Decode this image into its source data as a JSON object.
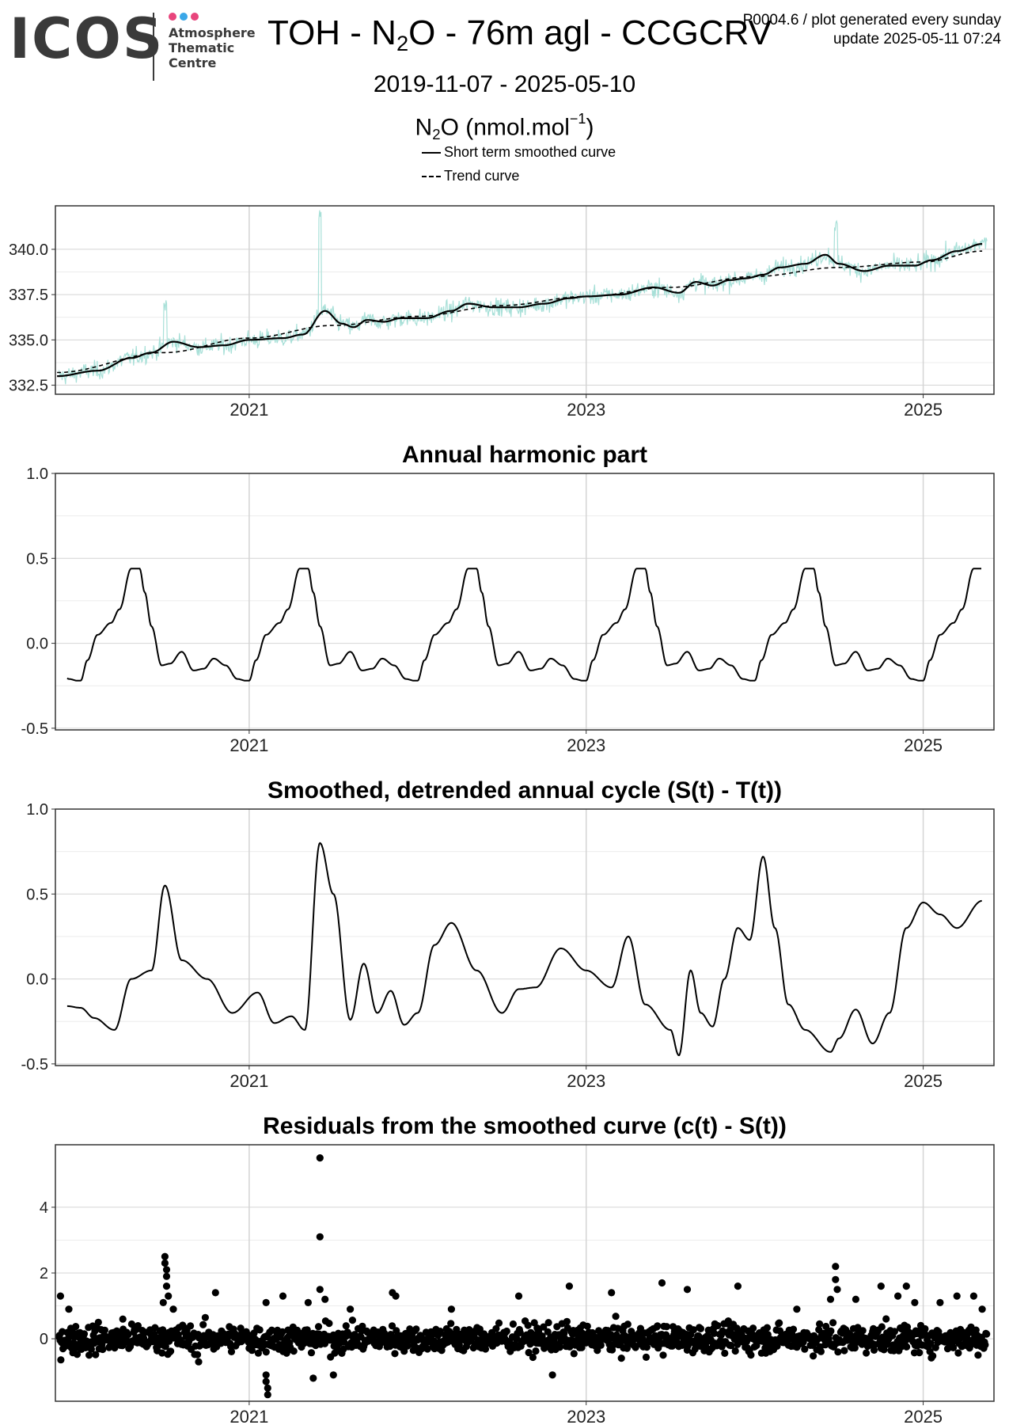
{
  "header": {
    "logo_text": "ICOS",
    "logo_subtitle": [
      "Atmosphere",
      "Thematic",
      "Centre"
    ],
    "logo_dot_colors": [
      "#e8457c",
      "#3aa7e8",
      "#e8457c"
    ],
    "title_parts": [
      "TOH - N",
      "2",
      "O - 76m agl - CCGCRV"
    ],
    "meta_line1": "P0004.6 / plot generated every sunday",
    "meta_line2": "update  2025-05-11 07:24",
    "date_range": "2019-11-07 - 2025-05-10",
    "unit_parts": [
      "N",
      "2",
      "O (nmol.mol",
      "−1",
      ")"
    ]
  },
  "legend": {
    "items": [
      {
        "label": "Short term smoothed curve",
        "style": "solid"
      },
      {
        "label": "Trend curve",
        "style": "dashed"
      }
    ]
  },
  "colors": {
    "raw_series": "#a8e0d8",
    "lines": "#000000",
    "grid_major": "#d4d4d4",
    "grid_minor": "#ececec",
    "panel_border": "#333333"
  },
  "chart_data": [
    {
      "type": "line",
      "title": "",
      "xlim": [
        2019.85,
        2025.42
      ],
      "ylim": [
        332.0,
        342.4
      ],
      "yticks": [
        332.5,
        335.0,
        337.5,
        340.0
      ],
      "ytick_labels": [
        "332.5",
        "335.0",
        "337.5",
        "340.0"
      ],
      "xticks": [
        2021,
        2023,
        2025
      ],
      "xtick_labels": [
        "2021",
        "2023",
        "2025"
      ],
      "series": [
        {
          "name": "Short term smoothed curve",
          "style": "solid",
          "x": [
            2019.86,
            2020.1,
            2020.3,
            2020.42,
            2020.55,
            2020.7,
            2020.85,
            2021.0,
            2021.2,
            2021.32,
            2021.45,
            2021.55,
            2021.62,
            2021.7,
            2021.8,
            2021.9,
            2022.05,
            2022.2,
            2022.3,
            2022.45,
            2022.6,
            2022.75,
            2022.9,
            2023.0,
            2023.2,
            2023.4,
            2023.55,
            2023.65,
            2023.75,
            2023.85,
            2023.95,
            2024.05,
            2024.15,
            2024.3,
            2024.42,
            2024.5,
            2024.65,
            2024.8,
            2024.95,
            2025.05,
            2025.2,
            2025.35
          ],
          "y": [
            333.0,
            333.3,
            334.0,
            334.3,
            334.9,
            334.6,
            334.7,
            335.0,
            335.1,
            335.3,
            336.6,
            335.9,
            335.7,
            336.1,
            336.0,
            336.2,
            336.2,
            336.6,
            337.0,
            336.8,
            336.8,
            337.0,
            337.3,
            337.4,
            337.5,
            337.9,
            337.6,
            338.2,
            338.0,
            338.3,
            338.4,
            338.6,
            339.0,
            339.2,
            339.7,
            339.2,
            338.8,
            339.1,
            339.1,
            339.4,
            339.9,
            340.3
          ]
        },
        {
          "name": "Trend curve",
          "style": "dashed",
          "x": [
            2019.86,
            2020.5,
            2021.0,
            2021.5,
            2022.0,
            2022.5,
            2023.0,
            2023.5,
            2024.0,
            2024.5,
            2025.0,
            2025.35
          ],
          "y": [
            333.2,
            334.3,
            335.1,
            335.8,
            336.3,
            336.9,
            337.4,
            337.9,
            338.5,
            339.0,
            339.3,
            339.9
          ]
        }
      ]
    },
    {
      "type": "line",
      "title": "Annual harmonic part",
      "xlim": [
        2019.85,
        2025.42
      ],
      "ylim": [
        -0.51,
        1.0
      ],
      "yticks": [
        -0.5,
        0.0,
        0.5,
        1.0
      ],
      "ytick_labels": [
        "-0.5",
        "0.0",
        "0.5",
        "1.0"
      ],
      "xticks": [
        2021,
        2023,
        2025
      ],
      "xtick_labels": [
        "2021",
        "2023",
        "2025"
      ],
      "series": [
        {
          "style": "solid",
          "cycle_phase": [
            0,
            0.04,
            0.1,
            0.18,
            0.23,
            0.3,
            0.35,
            0.38,
            0.42,
            0.48,
            0.53,
            0.6,
            0.67,
            0.73,
            0.79,
            0.86,
            0.93,
            0.98,
            1.0
          ],
          "cycle_value": [
            -0.22,
            -0.1,
            0.05,
            0.12,
            0.2,
            0.44,
            0.44,
            0.3,
            0.1,
            -0.13,
            -0.12,
            -0.05,
            -0.16,
            -0.15,
            -0.09,
            -0.13,
            -0.21,
            -0.22,
            -0.22
          ],
          "phase_origin_year": 2020.0,
          "x_start": 2019.92,
          "x_end": 2025.35
        }
      ]
    },
    {
      "type": "line",
      "title": "Smoothed, detrended annual cycle (S(t) - T(t))",
      "xlim": [
        2019.85,
        2025.42
      ],
      "ylim": [
        -0.51,
        1.0
      ],
      "yticks": [
        -0.5,
        0.0,
        0.5,
        1.0
      ],
      "ytick_labels": [
        "-0.5",
        "0.0",
        "0.5",
        "1.0"
      ],
      "xticks": [
        2021,
        2023,
        2025
      ],
      "xtick_labels": [
        "2021",
        "2023",
        "2025"
      ],
      "series": [
        {
          "style": "solid",
          "x": [
            2019.92,
            2020.0,
            2020.08,
            2020.2,
            2020.3,
            2020.42,
            2020.5,
            2020.6,
            2020.75,
            2020.9,
            2021.05,
            2021.15,
            2021.25,
            2021.33,
            2021.42,
            2021.5,
            2021.6,
            2021.68,
            2021.76,
            2021.84,
            2021.92,
            2022.0,
            2022.1,
            2022.2,
            2022.35,
            2022.5,
            2022.6,
            2022.7,
            2022.85,
            2023.0,
            2023.15,
            2023.25,
            2023.35,
            2023.5,
            2023.55,
            2023.62,
            2023.68,
            2023.75,
            2023.82,
            2023.9,
            2023.97,
            2024.05,
            2024.12,
            2024.2,
            2024.3,
            2024.45,
            2024.5,
            2024.6,
            2024.7,
            2024.8,
            2024.9,
            2025.0,
            2025.1,
            2025.2,
            2025.35
          ],
          "y": [
            -0.16,
            -0.17,
            -0.23,
            -0.3,
            0.0,
            0.05,
            0.55,
            0.11,
            0.0,
            -0.2,
            -0.08,
            -0.26,
            -0.22,
            -0.3,
            0.8,
            0.5,
            -0.24,
            0.09,
            -0.2,
            -0.07,
            -0.27,
            -0.2,
            0.2,
            0.33,
            0.05,
            -0.2,
            -0.06,
            -0.05,
            0.18,
            0.05,
            -0.05,
            0.25,
            -0.15,
            -0.3,
            -0.45,
            0.05,
            -0.2,
            -0.28,
            0.0,
            0.3,
            0.23,
            0.72,
            0.3,
            -0.15,
            -0.3,
            -0.43,
            -0.35,
            -0.18,
            -0.38,
            -0.2,
            0.3,
            0.45,
            0.38,
            0.3,
            0.46
          ]
        }
      ]
    },
    {
      "type": "scatter",
      "title": "Residuals from the smoothed curve (c(t) - S(t))",
      "xlim": [
        2019.85,
        2025.42
      ],
      "ylim": [
        -1.9,
        5.9
      ],
      "yticks": [
        0,
        2,
        4
      ],
      "ytick_labels": [
        "0",
        "2",
        "4"
      ],
      "xticks": [
        2021,
        2023,
        2025
      ],
      "xtick_labels": [
        "2021",
        "2023",
        "2025"
      ],
      "spread": 0.3,
      "points": [
        [
          2019.88,
          1.3
        ],
        [
          2019.93,
          0.9
        ],
        [
          2020.05,
          -0.5
        ],
        [
          2020.25,
          0.6
        ],
        [
          2020.5,
          2.5
        ],
        [
          2020.5,
          2.3
        ],
        [
          2020.51,
          2.1
        ],
        [
          2020.51,
          1.9
        ],
        [
          2020.51,
          1.6
        ],
        [
          2020.52,
          1.3
        ],
        [
          2020.49,
          1.1
        ],
        [
          2020.55,
          0.9
        ],
        [
          2020.8,
          1.4
        ],
        [
          2020.7,
          -0.7
        ],
        [
          2021.1,
          1.1
        ],
        [
          2021.2,
          1.3
        ],
        [
          2021.1,
          -1.1
        ],
        [
          2021.1,
          -1.3
        ],
        [
          2021.11,
          -1.5
        ],
        [
          2021.11,
          -1.7
        ],
        [
          2021.42,
          5.5
        ],
        [
          2021.42,
          3.1
        ],
        [
          2021.42,
          1.5
        ],
        [
          2021.45,
          1.2
        ],
        [
          2021.35,
          1.1
        ],
        [
          2021.38,
          -1.2
        ],
        [
          2021.5,
          -1.1
        ],
        [
          2021.6,
          0.9
        ],
        [
          2021.85,
          1.4
        ],
        [
          2021.87,
          1.3
        ],
        [
          2022.2,
          0.9
        ],
        [
          2022.6,
          1.3
        ],
        [
          2022.8,
          -1.1
        ],
        [
          2022.9,
          1.6
        ],
        [
          2023.15,
          1.4
        ],
        [
          2023.45,
          1.7
        ],
        [
          2023.6,
          1.5
        ],
        [
          2023.9,
          1.6
        ],
        [
          2024.25,
          0.9
        ],
        [
          2024.45,
          1.2
        ],
        [
          2024.48,
          2.2
        ],
        [
          2024.48,
          1.8
        ],
        [
          2024.49,
          1.5
        ],
        [
          2024.6,
          1.2
        ],
        [
          2024.75,
          1.6
        ],
        [
          2024.85,
          1.3
        ],
        [
          2024.9,
          1.6
        ],
        [
          2024.95,
          1.1
        ],
        [
          2025.1,
          1.1
        ],
        [
          2025.2,
          1.3
        ],
        [
          2025.3,
          1.3
        ],
        [
          2025.35,
          0.9
        ]
      ]
    }
  ]
}
